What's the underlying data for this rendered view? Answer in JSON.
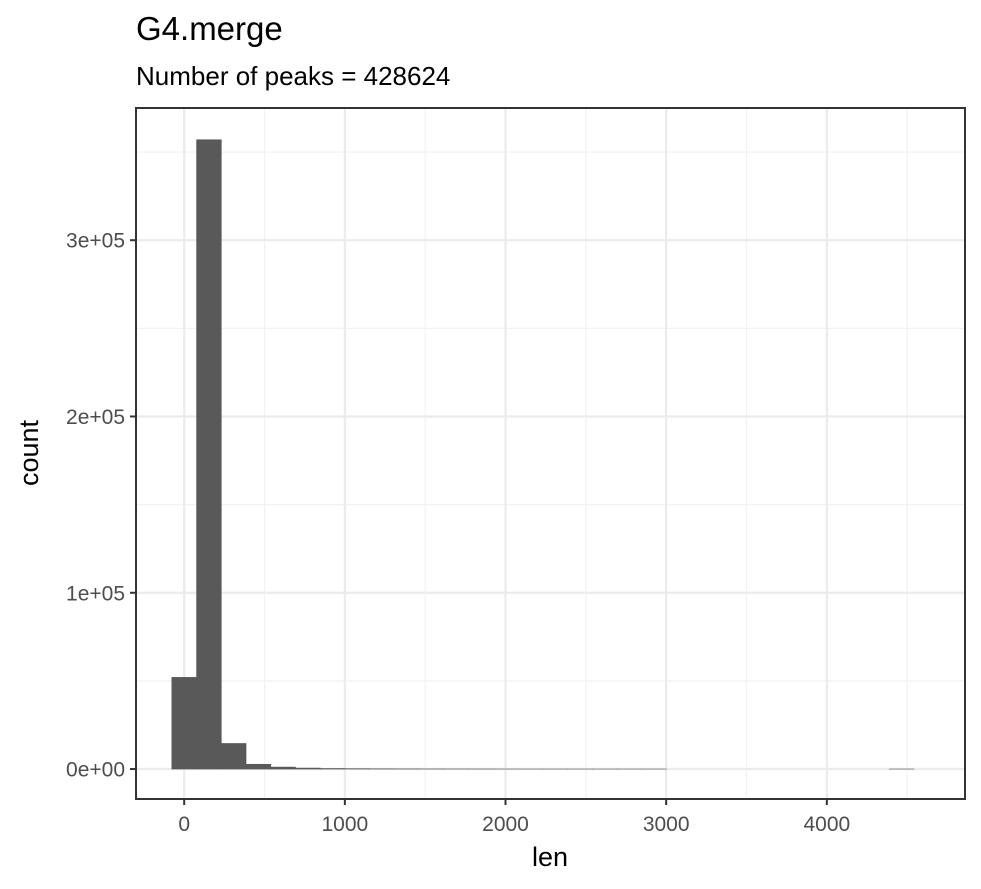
{
  "chart_data": {
    "type": "histogram",
    "title": "G4.merge",
    "subtitle": "Number of peaks = 428624",
    "xlabel": "len",
    "ylabel": "count",
    "bin_width": 154,
    "bins": [
      {
        "x0": -77,
        "x1": 77,
        "count": 52000
      },
      {
        "x0": 77,
        "x1": 231,
        "count": 357000
      },
      {
        "x0": 231,
        "x1": 385,
        "count": 14500
      },
      {
        "x0": 385,
        "x1": 539,
        "count": 2700
      },
      {
        "x0": 539,
        "x1": 693,
        "count": 1100
      },
      {
        "x0": 693,
        "x1": 847,
        "count": 550
      },
      {
        "x0": 847,
        "x1": 1001,
        "count": 300
      },
      {
        "x0": 1001,
        "x1": 1155,
        "count": 200
      },
      {
        "x0": 1155,
        "x1": 1309,
        "count": 130
      },
      {
        "x0": 1309,
        "x1": 1463,
        "count": 90
      },
      {
        "x0": 1463,
        "x1": 1617,
        "count": 60
      },
      {
        "x0": 1617,
        "x1": 1771,
        "count": 40
      },
      {
        "x0": 1771,
        "x1": 1925,
        "count": 25
      },
      {
        "x0": 1925,
        "x1": 2079,
        "count": 15
      },
      {
        "x0": 2079,
        "x1": 2233,
        "count": 8
      },
      {
        "x0": 2233,
        "x1": 2387,
        "count": 5
      },
      {
        "x0": 2387,
        "x1": 2541,
        "count": 3
      },
      {
        "x0": 2541,
        "x1": 2695,
        "count": 2
      },
      {
        "x0": 2695,
        "x1": 2849,
        "count": 1
      },
      {
        "x0": 2849,
        "x1": 3003,
        "count": 1
      },
      {
        "x0": 3003,
        "x1": 3157,
        "count": 0
      },
      {
        "x0": 3157,
        "x1": 3311,
        "count": 0
      },
      {
        "x0": 3311,
        "x1": 3465,
        "count": 0
      },
      {
        "x0": 3465,
        "x1": 3619,
        "count": 0
      },
      {
        "x0": 3619,
        "x1": 3773,
        "count": 0
      },
      {
        "x0": 3773,
        "x1": 3927,
        "count": 0
      },
      {
        "x0": 3927,
        "x1": 4081,
        "count": 0
      },
      {
        "x0": 4081,
        "x1": 4235,
        "count": 0
      },
      {
        "x0": 4235,
        "x1": 4389,
        "count": 0
      },
      {
        "x0": 4389,
        "x1": 4543,
        "count": 1
      }
    ],
    "xlim": [
      -300,
      4860
    ],
    "ylim": [
      -17000,
      375000
    ],
    "x_ticks": [
      0,
      1000,
      2000,
      3000,
      4000
    ],
    "x_tick_labels": [
      "0",
      "1000",
      "2000",
      "3000",
      "4000"
    ],
    "y_ticks": [
      0,
      100000,
      200000,
      300000
    ],
    "y_tick_labels": [
      "0e+00",
      "1e+05",
      "2e+05",
      "3e+05"
    ],
    "grid": true,
    "colors": {
      "bar": "#595959",
      "bar_outline": "#595959",
      "grid_major": "#ebebeb",
      "grid_minor": "#f2f2f2",
      "panel_border": "#333333",
      "tick_text": "#4d4d4d"
    }
  }
}
